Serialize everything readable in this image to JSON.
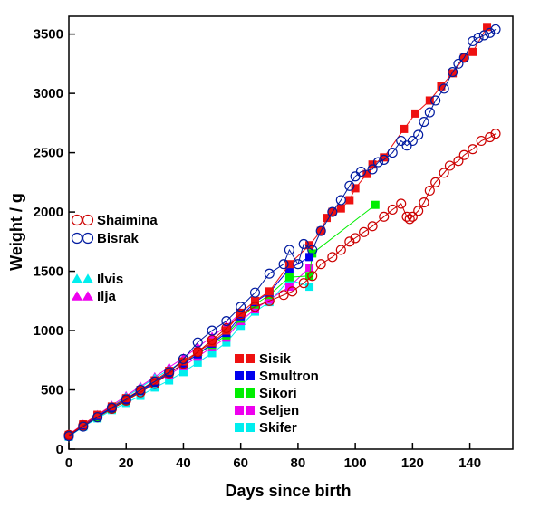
{
  "chart_data": {
    "type": "line",
    "title": "",
    "xlabel": "Days since birth",
    "ylabel": "Weight / g",
    "xlim": [
      0,
      155
    ],
    "ylim": [
      0,
      3650
    ],
    "x_ticks": [
      0,
      20,
      40,
      60,
      80,
      100,
      120,
      140
    ],
    "y_ticks": [
      0,
      500,
      1000,
      1500,
      2000,
      2500,
      3000,
      3500
    ],
    "grid": false,
    "legend_groups": [
      {
        "placement": "left-middle",
        "entries": [
          "Shaimina",
          "Bisrak"
        ]
      },
      {
        "placement": "left-lower",
        "entries": [
          "Ilvis",
          "Ilja"
        ]
      },
      {
        "placement": "bottom-center",
        "entries": [
          "Sisik",
          "Smultron",
          "Sikori",
          "Seljen",
          "Skifer"
        ]
      }
    ],
    "series": [
      {
        "name": "Shaimina",
        "color": "#cc0000",
        "marker": "open-circle",
        "x": [
          0,
          5,
          10,
          15,
          20,
          25,
          30,
          35,
          40,
          45,
          50,
          55,
          60,
          65,
          70,
          75,
          78,
          82,
          85,
          88,
          92,
          95,
          98,
          100,
          103,
          106,
          110,
          113,
          116,
          118,
          119,
          120,
          122,
          124,
          126,
          128,
          131,
          133,
          136,
          138,
          141,
          144,
          147,
          149
        ],
        "y": [
          120,
          200,
          270,
          340,
          410,
          480,
          550,
          640,
          720,
          820,
          920,
          1020,
          1140,
          1200,
          1250,
          1300,
          1330,
          1400,
          1460,
          1560,
          1620,
          1680,
          1750,
          1780,
          1830,
          1880,
          1960,
          2020,
          2070,
          1960,
          1940,
          1960,
          2010,
          2080,
          2180,
          2250,
          2330,
          2390,
          2430,
          2480,
          2530,
          2600,
          2630,
          2660
        ]
      },
      {
        "name": "Bisrak",
        "color": "#001aa0",
        "marker": "open-circle",
        "x": [
          0,
          5,
          10,
          15,
          20,
          25,
          30,
          35,
          40,
          45,
          50,
          55,
          60,
          65,
          70,
          75,
          77,
          80,
          82,
          85,
          88,
          92,
          95,
          98,
          100,
          102,
          106,
          108,
          110,
          113,
          116,
          118,
          120,
          122,
          124,
          126,
          128,
          131,
          134,
          136,
          138,
          141,
          143,
          145,
          147,
          149
        ],
        "y": [
          110,
          190,
          270,
          350,
          420,
          500,
          570,
          650,
          760,
          900,
          1000,
          1080,
          1200,
          1320,
          1480,
          1560,
          1680,
          1560,
          1730,
          1680,
          1840,
          2000,
          2100,
          2220,
          2300,
          2340,
          2360,
          2420,
          2440,
          2500,
          2600,
          2560,
          2600,
          2650,
          2760,
          2840,
          2940,
          3040,
          3180,
          3250,
          3300,
          3440,
          3470,
          3490,
          3510,
          3540
        ]
      },
      {
        "name": "Sisik",
        "color": "#ee1111",
        "marker": "filled-square",
        "x": [
          0,
          5,
          10,
          15,
          20,
          25,
          30,
          35,
          40,
          45,
          50,
          55,
          60,
          65,
          70,
          77,
          84,
          88,
          90,
          92,
          95,
          98,
          100,
          104,
          106,
          110,
          117,
          121,
          126,
          130,
          134,
          138,
          141,
          146
        ],
        "y": [
          120,
          210,
          290,
          360,
          430,
          500,
          580,
          660,
          740,
          820,
          900,
          1000,
          1150,
          1250,
          1330,
          1560,
          1720,
          1840,
          1950,
          2000,
          2030,
          2100,
          2200,
          2320,
          2400,
          2460,
          2700,
          2830,
          2940,
          3060,
          3170,
          3300,
          3350,
          3560
        ]
      },
      {
        "name": "Smultron",
        "color": "#0000ee",
        "marker": "filled-square",
        "x": [
          0,
          5,
          10,
          15,
          20,
          25,
          30,
          35,
          40,
          45,
          50,
          55,
          60,
          65,
          70,
          77,
          84
        ],
        "y": [
          110,
          200,
          280,
          350,
          420,
          490,
          560,
          640,
          720,
          800,
          890,
          980,
          1120,
          1240,
          1320,
          1520,
          1620
        ]
      },
      {
        "name": "Sikori",
        "color": "#00ee00",
        "marker": "filled-square",
        "x": [
          0,
          5,
          10,
          15,
          20,
          25,
          30,
          35,
          40,
          45,
          50,
          55,
          60,
          65,
          70,
          77,
          84,
          85,
          107
        ],
        "y": [
          110,
          200,
          270,
          340,
          410,
          490,
          560,
          640,
          720,
          800,
          880,
          960,
          1100,
          1220,
          1300,
          1450,
          1460,
          1650,
          2060
        ]
      },
      {
        "name": "Seljen",
        "color": "#ee00ee",
        "marker": "filled-square",
        "x": [
          0,
          5,
          10,
          15,
          20,
          25,
          30,
          35,
          40,
          45,
          50,
          55,
          60,
          65,
          70,
          77,
          84
        ],
        "y": [
          115,
          200,
          280,
          350,
          420,
          490,
          560,
          630,
          700,
          780,
          860,
          940,
          1080,
          1180,
          1260,
          1370,
          1530
        ]
      },
      {
        "name": "Skifer",
        "color": "#00eeee",
        "marker": "filled-square",
        "x": [
          0,
          5,
          10,
          15,
          20,
          25,
          30,
          35,
          40,
          45,
          50,
          55,
          60,
          65,
          70,
          77,
          84
        ],
        "y": [
          105,
          190,
          260,
          330,
          390,
          450,
          520,
          580,
          650,
          730,
          810,
          900,
          1040,
          1160,
          1240,
          1430,
          1370
        ]
      },
      {
        "name": "Ilvis",
        "color": "#00eeee",
        "marker": "filled-triangle",
        "x": [
          0,
          5,
          10,
          15,
          20,
          25,
          30,
          35,
          40,
          45,
          50,
          55,
          60
        ],
        "y": [
          120,
          200,
          280,
          360,
          440,
          520,
          600,
          670,
          740,
          820,
          900,
          980,
          1080
        ]
      },
      {
        "name": "Ilja",
        "color": "#ee00ee",
        "marker": "filled-triangle",
        "x": [
          0,
          5,
          10,
          15,
          20,
          25,
          30,
          35,
          40,
          45,
          50,
          55,
          60
        ],
        "y": [
          125,
          210,
          290,
          370,
          450,
          530,
          610,
          690,
          770,
          860,
          950,
          1040,
          1150
        ]
      }
    ]
  }
}
